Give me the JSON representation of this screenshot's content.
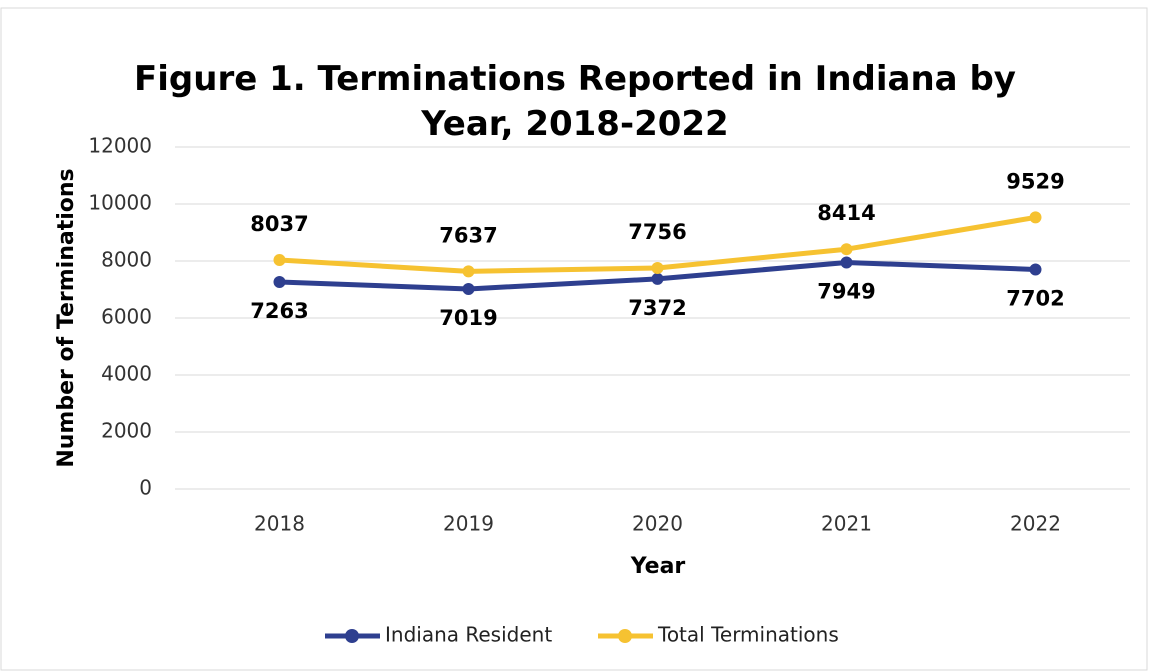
{
  "chart_data": {
    "type": "line",
    "title": "Figure 1. Terminations Reported in Indiana by Year, 2018-2022",
    "x_label": "Year",
    "y_label": "Number of Terminations",
    "categories": [
      "2018",
      "2019",
      "2020",
      "2021",
      "2022"
    ],
    "series": [
      {
        "name": "Indiana Resident",
        "color": "#2e3f8f",
        "values": [
          7263,
          7019,
          7372,
          7949,
          7702
        ]
      },
      {
        "name": "Total Terminations",
        "color": "#f6c231",
        "values": [
          8037,
          7637,
          7756,
          8414,
          9529
        ]
      }
    ],
    "ylim": [
      0,
      12000
    ],
    "yticks": [
      0,
      2000,
      4000,
      6000,
      8000,
      10000,
      12000
    ],
    "grid": true,
    "legend": "bottom"
  }
}
